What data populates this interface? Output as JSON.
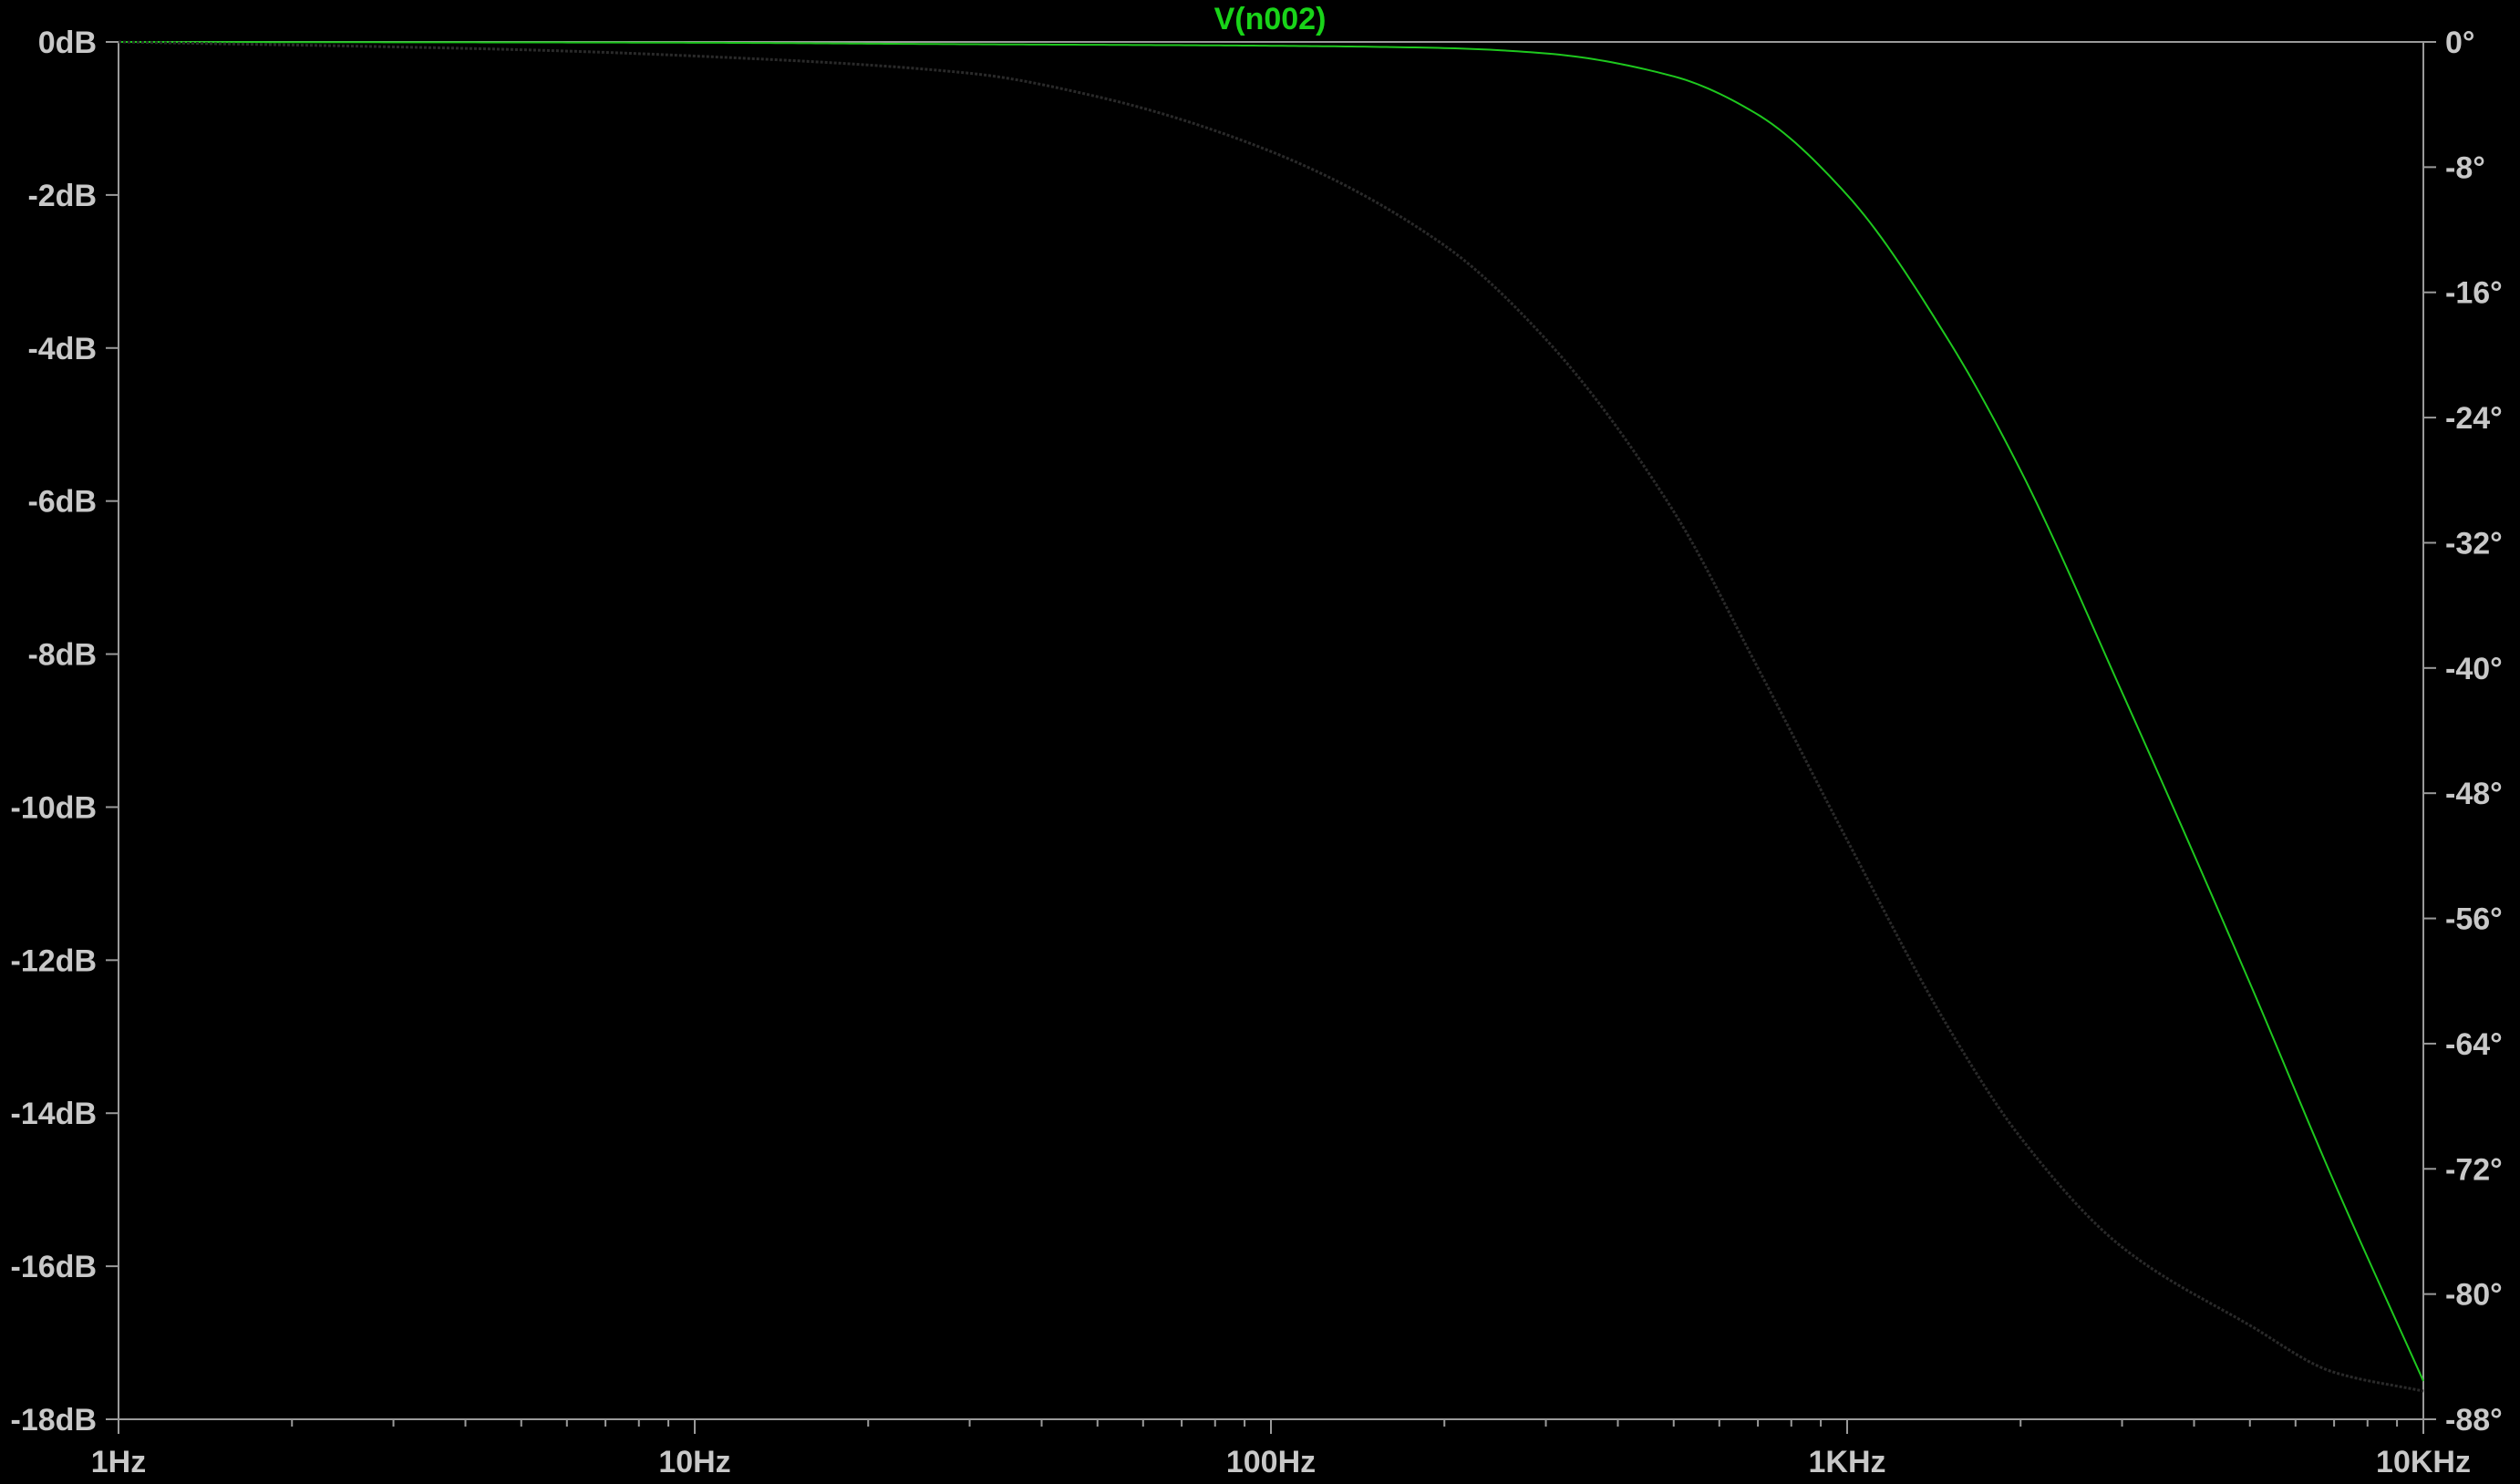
{
  "chart_data": {
    "type": "line",
    "title": "V(n002)",
    "title_color": "#19d419",
    "background_color": "#000000",
    "axis_color": "#9a9a9a",
    "tick_label_color": "#c8c8c8",
    "grid": false,
    "x_axis": {
      "scale": "log",
      "range_hz": [
        1,
        10000
      ],
      "tick_labels": [
        "1Hz",
        "10Hz",
        "100Hz",
        "1KHz",
        "10KHz"
      ],
      "major_ticks_hz": [
        1,
        10,
        100,
        1000,
        10000
      ]
    },
    "y_left": {
      "unit": "dB",
      "range": [
        -18,
        0
      ],
      "tick_values": [
        0,
        -2,
        -4,
        -6,
        -8,
        -10,
        -12,
        -14,
        -16,
        -18
      ],
      "tick_labels": [
        "0dB",
        "-2dB",
        "-4dB",
        "-6dB",
        "-8dB",
        "-10dB",
        "-12dB",
        "-14dB",
        "-16dB",
        "-18dB"
      ]
    },
    "y_right": {
      "unit": "degrees",
      "range": [
        -88,
        0
      ],
      "tick_values": [
        0,
        -8,
        -16,
        -24,
        -32,
        -40,
        -48,
        -56,
        -64,
        -72,
        -80,
        -88
      ],
      "tick_labels": [
        "0°",
        "-8°",
        "-16°",
        "-24°",
        "-32°",
        "-40°",
        "-48°",
        "-56°",
        "-64°",
        "-72°",
        "-80°",
        "-88°"
      ]
    },
    "series": [
      {
        "trace": "magnitude",
        "axis": "left",
        "color": "#1ec81e",
        "line_style": "solid",
        "x": [
          1,
          10,
          30,
          100,
          200,
          300,
          500,
          700,
          1000,
          1500,
          2000,
          3000,
          5000,
          7000,
          10000
        ],
        "y": [
          0,
          -0.01,
          -0.03,
          -0.05,
          -0.08,
          -0.15,
          -0.45,
          -0.95,
          -2.0,
          -3.9,
          -5.6,
          -8.5,
          -12.3,
          -14.9,
          -17.5
        ]
      },
      {
        "trace": "phase",
        "axis": "right",
        "color": "#2a2a2a",
        "line_style": "dotted",
        "x": [
          1,
          5,
          10,
          30,
          50,
          100,
          200,
          300,
          500,
          700,
          1000,
          1500,
          2000,
          3000,
          5000,
          7000,
          10000
        ],
        "y": [
          0,
          -0.5,
          -0.9,
          -2.0,
          -3.5,
          -7.0,
          -13.0,
          -19.0,
          -30.0,
          -40.0,
          -51.0,
          -63.0,
          -70.0,
          -77.0,
          -82.0,
          -85.0,
          -86.2
        ]
      }
    ]
  }
}
